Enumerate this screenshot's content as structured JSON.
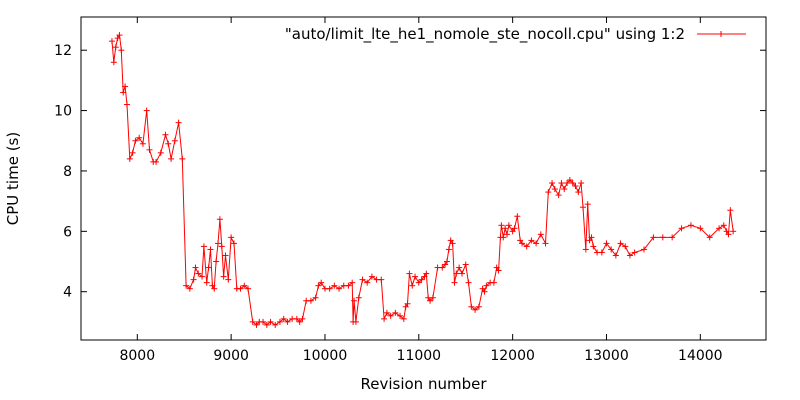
{
  "chart_data": {
    "type": "line",
    "xlabel": "Revision number",
    "ylabel": "CPU time (s)",
    "xlim": [
      7400,
      14700
    ],
    "ylim": [
      2.4,
      13.1
    ],
    "x_ticks": [
      8000,
      9000,
      10000,
      11000,
      12000,
      13000,
      14000
    ],
    "y_ticks": [
      4,
      6,
      8,
      10,
      12
    ],
    "grid": false,
    "legend_position": "top-right",
    "series": [
      {
        "name": "\"auto/limit_lte_he1_nomole_ste_nocoll.cpu\" using 1:2",
        "color": "#ff0000",
        "marker": "plus",
        "x": [
          7730,
          7750,
          7770,
          7790,
          7810,
          7830,
          7850,
          7870,
          7890,
          7920,
          7950,
          7980,
          8020,
          8060,
          8100,
          8130,
          8170,
          8200,
          8250,
          8300,
          8330,
          8360,
          8400,
          8440,
          8480,
          8520,
          8560,
          8600,
          8620,
          8650,
          8690,
          8710,
          8740,
          8760,
          8780,
          8800,
          8820,
          8840,
          8860,
          8880,
          8900,
          8920,
          8940,
          8970,
          9000,
          9030,
          9060,
          9100,
          9140,
          9180,
          9230,
          9270,
          9300,
          9340,
          9380,
          9420,
          9470,
          9520,
          9560,
          9600,
          9650,
          9700,
          9730,
          9760,
          9800,
          9850,
          9900,
          9930,
          9960,
          10000,
          10050,
          10100,
          10150,
          10200,
          10250,
          10290,
          10300,
          10310,
          10330,
          10360,
          10400,
          10450,
          10500,
          10550,
          10600,
          10630,
          10660,
          10700,
          10750,
          10800,
          10840,
          10860,
          10880,
          10900,
          10930,
          10960,
          11000,
          11030,
          11060,
          11080,
          11100,
          11120,
          11150,
          11200,
          11250,
          11280,
          11300,
          11320,
          11340,
          11360,
          11380,
          11400,
          11430,
          11460,
          11500,
          11530,
          11560,
          11600,
          11640,
          11680,
          11700,
          11720,
          11760,
          11800,
          11830,
          11850,
          11870,
          11880,
          11900,
          11920,
          11940,
          11960,
          12000,
          12020,
          12050,
          12080,
          12100,
          12150,
          12200,
          12250,
          12300,
          12350,
          12380,
          12420,
          12450,
          12490,
          12520,
          12550,
          12580,
          12610,
          12640,
          12670,
          12700,
          12730,
          12750,
          12780,
          12800,
          12820,
          12840,
          12860,
          12900,
          12950,
          13000,
          13050,
          13100,
          13150,
          13200,
          13250,
          13300,
          13400,
          13500,
          13600,
          13700,
          13800,
          13900,
          14000,
          14100,
          14200,
          14250,
          14280,
          14300,
          14320,
          14350
        ],
        "y": [
          12.3,
          11.6,
          12.1,
          12.4,
          12.5,
          12.0,
          10.6,
          10.8,
          10.2,
          8.4,
          8.6,
          9.0,
          9.1,
          8.9,
          10.0,
          8.7,
          8.3,
          8.3,
          8.6,
          9.2,
          8.9,
          8.4,
          9.0,
          9.6,
          8.4,
          4.2,
          4.1,
          4.4,
          4.8,
          4.6,
          4.5,
          5.5,
          4.3,
          4.8,
          5.4,
          4.2,
          4.1,
          5.0,
          5.6,
          6.4,
          5.5,
          4.5,
          5.2,
          4.4,
          5.8,
          5.6,
          4.1,
          4.1,
          4.2,
          4.1,
          3.0,
          2.9,
          3.0,
          3.0,
          2.9,
          3.0,
          2.9,
          3.0,
          3.1,
          3.0,
          3.1,
          3.1,
          3.0,
          3.1,
          3.7,
          3.7,
          3.8,
          4.2,
          4.3,
          4.1,
          4.1,
          4.2,
          4.1,
          4.2,
          4.2,
          4.3,
          3.0,
          3.7,
          3.0,
          3.8,
          4.4,
          4.3,
          4.5,
          4.4,
          4.4,
          3.1,
          3.3,
          3.2,
          3.3,
          3.2,
          3.1,
          3.5,
          3.6,
          4.6,
          4.2,
          4.5,
          4.3,
          4.4,
          4.5,
          4.6,
          3.8,
          3.7,
          3.8,
          4.8,
          4.8,
          4.9,
          5.0,
          5.4,
          5.7,
          5.6,
          4.3,
          4.6,
          4.8,
          4.6,
          4.9,
          4.3,
          3.5,
          3.4,
          3.5,
          4.1,
          4.0,
          4.2,
          4.3,
          4.3,
          4.8,
          4.7,
          5.8,
          6.2,
          5.8,
          6.1,
          5.9,
          6.2,
          6.0,
          6.1,
          6.5,
          5.7,
          5.6,
          5.5,
          5.7,
          5.6,
          5.9,
          5.6,
          7.3,
          7.6,
          7.4,
          7.2,
          7.6,
          7.4,
          7.6,
          7.7,
          7.6,
          7.5,
          7.3,
          7.6,
          6.8,
          5.4,
          6.9,
          5.7,
          5.8,
          5.5,
          5.3,
          5.3,
          5.6,
          5.4,
          5.2,
          5.6,
          5.5,
          5.2,
          5.3,
          5.4,
          5.8,
          5.8,
          5.8,
          6.1,
          6.2,
          6.1,
          5.8,
          6.1,
          6.2,
          6.0,
          5.9,
          6.7,
          6.0
        ]
      }
    ]
  }
}
